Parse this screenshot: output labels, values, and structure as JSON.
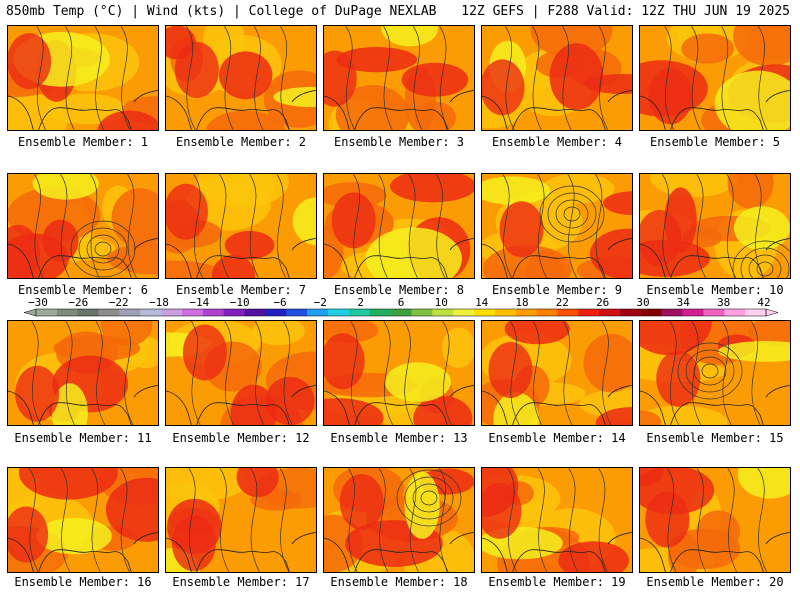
{
  "header": {
    "left": "850mb Temp (°C) | Wind (kts) | College of DuPage NEXLAB",
    "right": "12Z GEFS | F288 Valid: 12Z THU JUN 19 2025"
  },
  "panels": [
    {
      "caption": "Ensemble Member: 1"
    },
    {
      "caption": "Ensemble Member: 2"
    },
    {
      "caption": "Ensemble Member: 3"
    },
    {
      "caption": "Ensemble Member: 4"
    },
    {
      "caption": "Ensemble Member: 5"
    },
    {
      "caption": "Ensemble Member: 6"
    },
    {
      "caption": "Ensemble Member: 7"
    },
    {
      "caption": "Ensemble Member: 8"
    },
    {
      "caption": "Ensemble Member: 9"
    },
    {
      "caption": "Ensemble Member: 10"
    },
    {
      "caption": "Ensemble Member: 11"
    },
    {
      "caption": "Ensemble Member: 12"
    },
    {
      "caption": "Ensemble Member: 13"
    },
    {
      "caption": "Ensemble Member: 14"
    },
    {
      "caption": "Ensemble Member: 15"
    },
    {
      "caption": "Ensemble Member: 16"
    },
    {
      "caption": "Ensemble Member: 17"
    },
    {
      "caption": "Ensemble Member: 18"
    },
    {
      "caption": "Ensemble Member: 19"
    },
    {
      "caption": "Ensemble Member: 20"
    }
  ],
  "colorbar": {
    "labels": [
      "−30",
      "−26",
      "−22",
      "−18",
      "−14",
      "−10",
      "−6",
      "−2",
      "2",
      "6",
      "10",
      "14",
      "18",
      "22",
      "26",
      "30",
      "34",
      "38",
      "42"
    ],
    "colors": [
      "#a0a8a0",
      "#7f8a80",
      "#6a746c",
      "#8c8c8c",
      "#a0a0b4",
      "#b8b8d8",
      "#c8a0e0",
      "#d070e0",
      "#b040d0",
      "#8020c0",
      "#5010a0",
      "#2020c0",
      "#2050e0",
      "#20a0f0",
      "#20d0e0",
      "#20c8a0",
      "#20b060",
      "#40a040",
      "#80c040",
      "#c0e040",
      "#f0f040",
      "#ffe000",
      "#ffc000",
      "#ffa000",
      "#ff8000",
      "#ff5000",
      "#f02010",
      "#d01010",
      "#a00010",
      "#800000",
      "#a01060",
      "#d02090",
      "#f060c0",
      "#ffa0e0",
      "#ffd0f0"
    ]
  },
  "colors": {
    "yellow": "#f4f01e",
    "gold": "#fcc40c",
    "orange": "#fc9c04",
    "dark_orange": "#f56a0a",
    "red": "#ec2c14",
    "dark_red": "#c41414"
  }
}
